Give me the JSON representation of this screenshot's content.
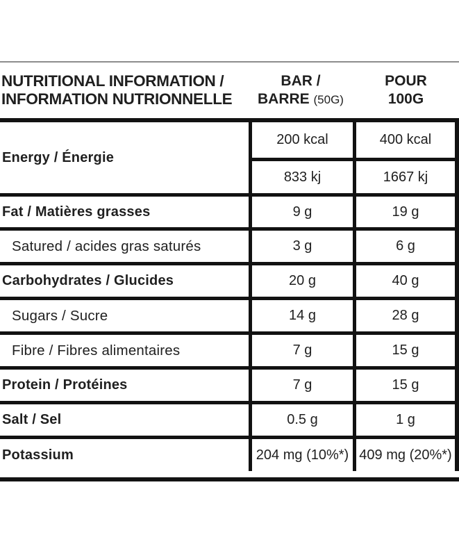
{
  "header": {
    "col1_line1": "NUTRITIONAL INFORMATION /",
    "col1_line2": "INFORMATION NUTRIONNELLE",
    "col2_line1": "BAR /",
    "col2_line2_name": "BARRE",
    "col2_line2_size": "(50G)",
    "col3_line1": "POUR",
    "col3_line2": "100G"
  },
  "rows": [
    {
      "label": "Energy / Énergie",
      "bar_kcal": "200 kcal",
      "per100_kcal": "400 kcal",
      "bar_kj": "833 kj",
      "per100_kj": "1667 kj"
    },
    {
      "label": "Fat / Matières grasses",
      "bar": "9 g",
      "per100": "19 g"
    },
    {
      "label": "Satured / acides gras saturés",
      "bar": "3 g",
      "per100": "6 g"
    },
    {
      "label": "Carbohydrates / Glucides",
      "bar": "20 g",
      "per100": "40 g"
    },
    {
      "label": "Sugars / Sucre",
      "bar": "14 g",
      "per100": "28 g"
    },
    {
      "label": "Fibre / Fibres alimentaires",
      "bar": "7 g",
      "per100": "15 g"
    },
    {
      "label": "Protein / Protéines",
      "bar": "7 g",
      "per100": "15 g"
    },
    {
      "label": "Salt / Sel",
      "bar": "0.5 g",
      "per100": "1 g"
    },
    {
      "label": "Potassium",
      "bar": "204 mg (10%*)",
      "per100": "409 mg (20%*)"
    }
  ],
  "colors": {
    "background": "#ffffff",
    "line_black": "#121212",
    "line_gray": "#8c8c8c",
    "text": "#1f1f1f"
  }
}
